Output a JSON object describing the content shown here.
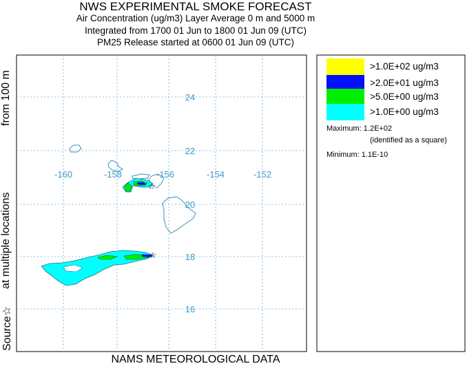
{
  "header": {
    "title": "NWS EXPERIMENTAL SMOKE FORECAST",
    "line2": "Air Concentration (ug/m3) Layer Average    0 m and  5000 m",
    "line3": "Integrated from 1700 01 Jun to 1800 01 Jun 09 (UTC)",
    "line4": "PM25 Release started at 0600 01 Jun 09 (UTC)"
  },
  "side_labels": {
    "top": "from   100 m",
    "middle": "at multiple locations",
    "bottom": "Source☆"
  },
  "footer": "NAMS METEOROLOGICAL DATA",
  "map": {
    "lon_labels": [
      "-160",
      "-158",
      "-156",
      "-154",
      "-152"
    ],
    "lat_labels": [
      "24",
      "22",
      "20",
      "18",
      "16"
    ],
    "grid_color": "#5aaee0",
    "coast_color": "#3f8fb8"
  },
  "legend": {
    "items": [
      {
        "label": ">1.0E+02 ug/m3",
        "color": "#ffff00"
      },
      {
        "label": ">2.0E+01 ug/m3",
        "color": "#0010ff"
      },
      {
        "label": ">5.0E+00 ug/m3",
        "color": "#00ee00"
      },
      {
        "label": ">1.0E+00 ug/m3",
        "color": "#00ffff"
      }
    ],
    "maximum": "Maximum: 1.2E+02",
    "max_note": "(identified as a square)",
    "minimum": "Minimum: 1.1E-10"
  }
}
